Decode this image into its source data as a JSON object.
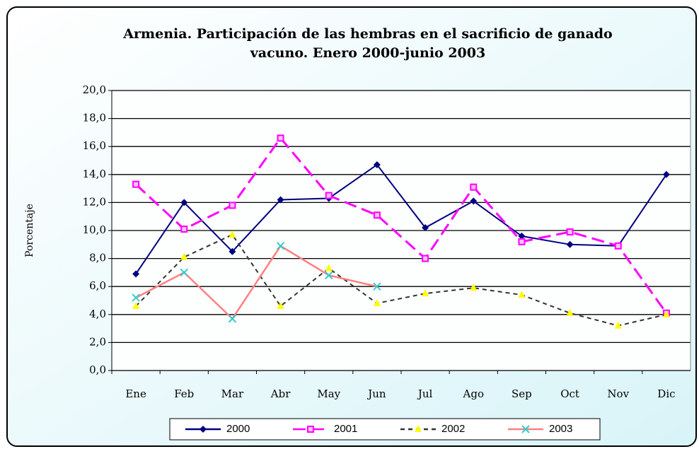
{
  "chart_data": {
    "type": "line",
    "title": [
      "Armenia. Participación de las hembras en el sacrificio de ganado",
      "vacuno. Enero 2000-junio 2003"
    ],
    "y_label": "Porcentaje",
    "categories": [
      "Ene",
      "Feb",
      "Mar",
      "Abr",
      "May",
      "Jun",
      "Jul",
      "Ago",
      "Sep",
      "Oct",
      "Nov",
      "Dic"
    ],
    "series": [
      {
        "name": "2000",
        "color": "#000080",
        "marker_color": "#000080",
        "marker": "diamond",
        "dash": "none",
        "values": [
          6.9,
          12.0,
          8.5,
          12.2,
          12.3,
          14.7,
          10.2,
          12.1,
          9.6,
          9.0,
          8.9,
          14.0
        ]
      },
      {
        "name": "2001",
        "color": "#ff00ff",
        "marker_color": "#ff00ff",
        "marker": "square",
        "dash": "18 8",
        "values": [
          13.3,
          10.1,
          11.8,
          16.6,
          12.5,
          11.1,
          8.0,
          13.1,
          9.2,
          9.9,
          8.9,
          4.1
        ]
      },
      {
        "name": "2002",
        "color": "#333333",
        "marker_color": "#ffff00",
        "marker": "triangle",
        "dash": "6 5",
        "values": [
          4.6,
          8.1,
          9.7,
          4.6,
          7.3,
          4.8,
          5.5,
          5.9,
          5.4,
          4.1,
          3.2,
          4.0
        ]
      },
      {
        "name": "2003",
        "color": "#ff8080",
        "marker_color": "#33cccc",
        "marker": "x",
        "dash": "none",
        "values": [
          5.2,
          7.0,
          3.7,
          8.9,
          6.8,
          6.0,
          null,
          null,
          null,
          null,
          null,
          null
        ]
      }
    ],
    "ylim": [
      0,
      20
    ],
    "yticks": [
      {
        "value": 0,
        "label": "0,0"
      },
      {
        "value": 2,
        "label": "2,0"
      },
      {
        "value": 4,
        "label": "4,0"
      },
      {
        "value": 6,
        "label": "6,0"
      },
      {
        "value": 8,
        "label": "8,0"
      },
      {
        "value": 10,
        "label": "10,0"
      },
      {
        "value": 12,
        "label": "12,0"
      },
      {
        "value": 14,
        "label": "14,0"
      },
      {
        "value": 16,
        "label": "16,0"
      },
      {
        "value": 18,
        "label": "18,0"
      },
      {
        "value": 20,
        "label": "20,0"
      }
    ],
    "grid": true,
    "legend": "bottom"
  }
}
